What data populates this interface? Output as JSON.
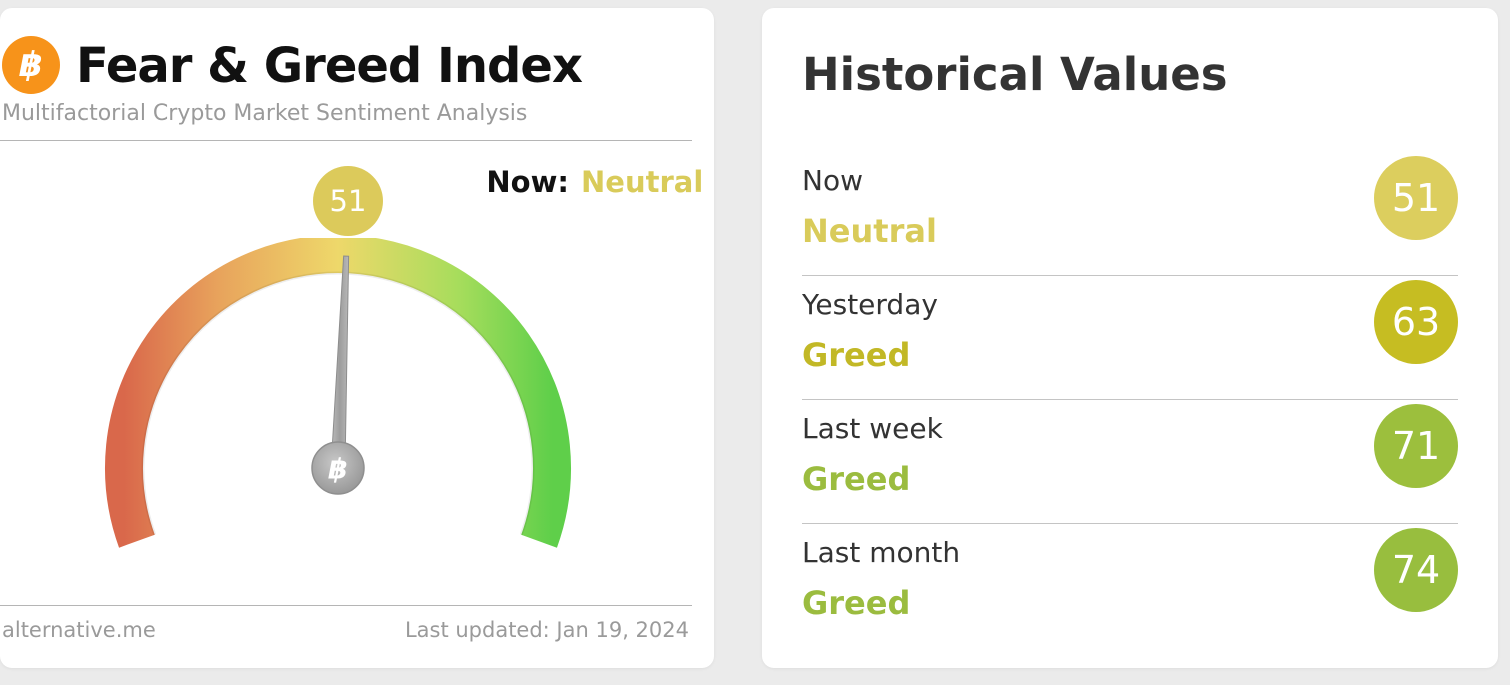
{
  "widget": {
    "logo_glyph": "฿",
    "title": "Fear & Greed Index",
    "subtitle": "Multifactorial Crypto Market Sentiment Analysis",
    "now_label": "Now:",
    "now_value": "Neutral",
    "now_value_color": "#d9cb5a",
    "index_value": "51",
    "gauge_value": 51,
    "gauge_center_glyph": "฿",
    "source": "alternative.me",
    "last_updated": "Last updated: Jan 19, 2024"
  },
  "historical": {
    "title": "Historical Values",
    "rows": [
      {
        "period": "Now",
        "label": "Neutral",
        "value": "51",
        "color": "#dcce5e",
        "label_color": "#d9cb5a"
      },
      {
        "period": "Yesterday",
        "label": "Greed",
        "value": "63",
        "color": "#c6bd22",
        "label_color": "#c2b826"
      },
      {
        "period": "Last week",
        "label": "Greed",
        "value": "71",
        "color": "#9cbf3d",
        "label_color": "#9bbc3f"
      },
      {
        "period": "Last month",
        "label": "Greed",
        "value": "74",
        "color": "#98be3e",
        "label_color": "#9bbc3f"
      }
    ]
  }
}
